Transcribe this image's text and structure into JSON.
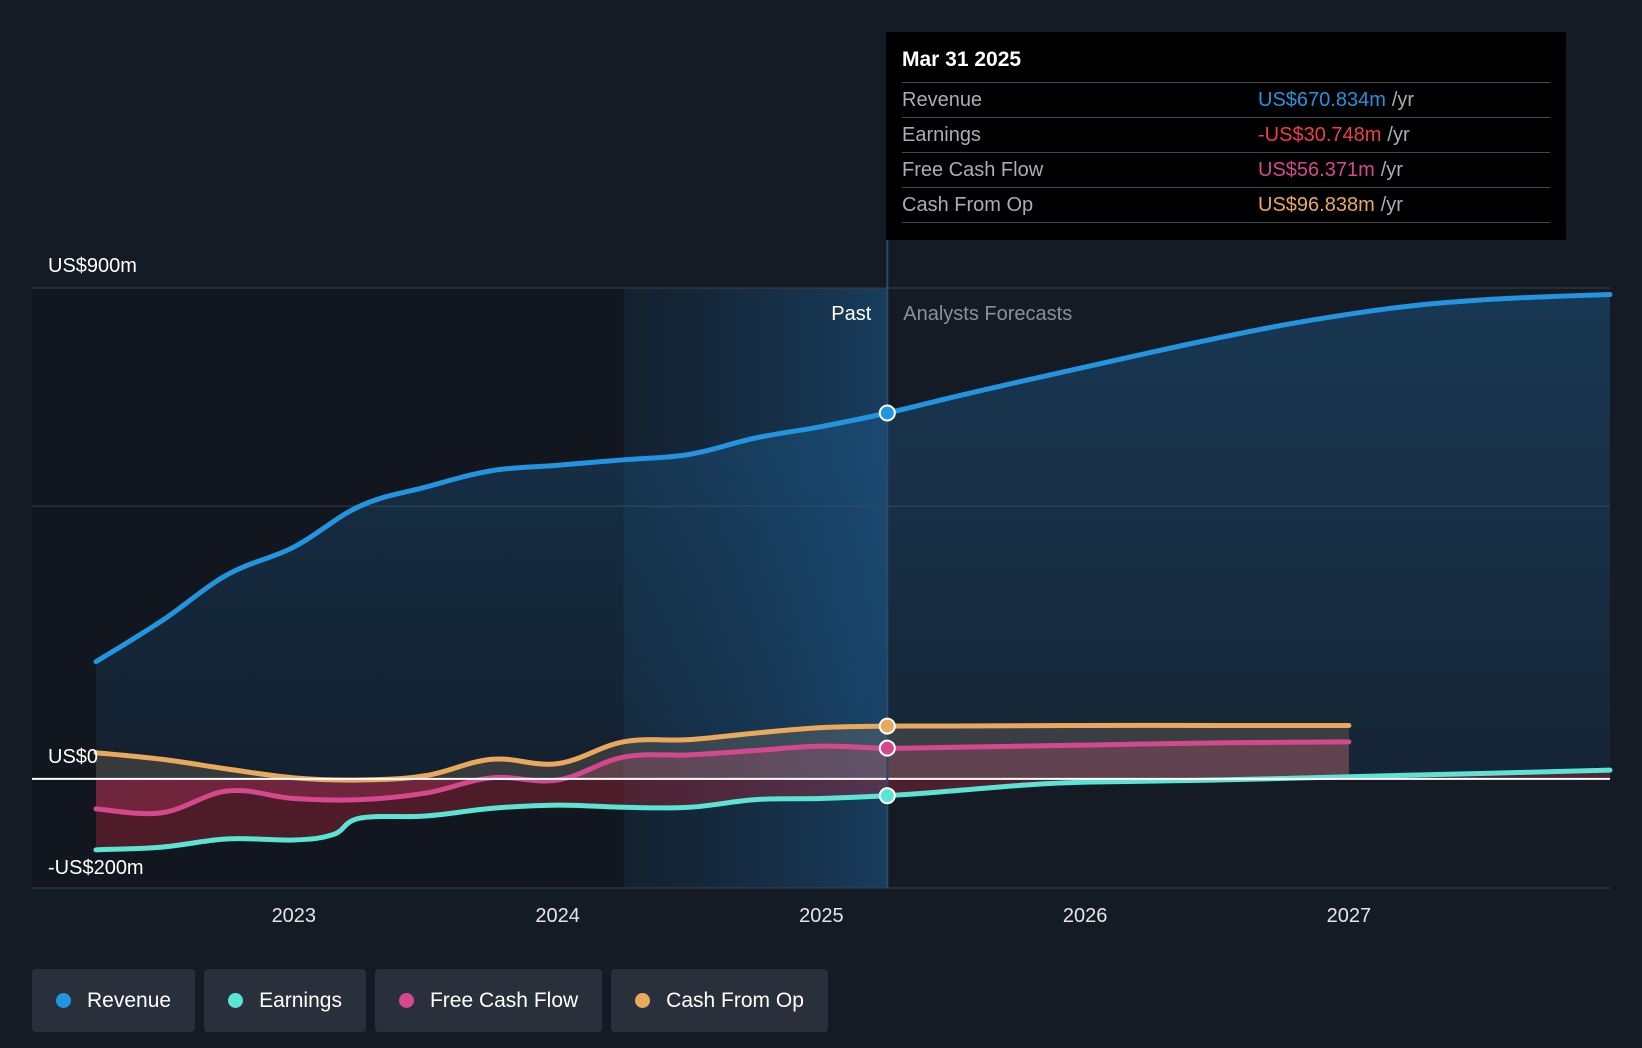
{
  "chart_data": {
    "type": "line",
    "x_unit": "year",
    "y_unit": "US$m",
    "yaxis_ticks": [
      {
        "value": 900,
        "label": "US$900m"
      },
      {
        "value": 0,
        "label": "US$0"
      },
      {
        "value": -200,
        "label": "-US$200m"
      }
    ],
    "ylim": [
      -200,
      900
    ],
    "xlim": [
      2022.25,
      2027.99
    ],
    "xaxis_ticks": [
      {
        "value": 2023,
        "label": "2023"
      },
      {
        "value": 2024,
        "label": "2024"
      },
      {
        "value": 2025,
        "label": "2025"
      },
      {
        "value": 2026,
        "label": "2026"
      },
      {
        "value": 2027,
        "label": "2027"
      }
    ],
    "past_label": "Past",
    "forecast_label": "Analysts Forecasts",
    "divider_x": 2025.25,
    "highlight_start_x": 2024.25,
    "gridlines_y": [
      900,
      500,
      -200
    ],
    "series": [
      {
        "name": "Revenue",
        "color": "#2394df",
        "fill": true,
        "points": [
          [
            2022.25,
            215
          ],
          [
            2022.5,
            290
          ],
          [
            2022.75,
            375
          ],
          [
            2023.0,
            425
          ],
          [
            2023.25,
            500
          ],
          [
            2023.5,
            535
          ],
          [
            2023.75,
            565
          ],
          [
            2024.0,
            575
          ],
          [
            2024.25,
            585
          ],
          [
            2024.5,
            595
          ],
          [
            2024.75,
            625
          ],
          [
            2025.0,
            646
          ],
          [
            2025.25,
            670.834
          ],
          [
            2025.5,
            700
          ],
          [
            2025.75,
            728
          ],
          [
            2026.0,
            755
          ],
          [
            2026.25,
            782
          ],
          [
            2026.5,
            808
          ],
          [
            2026.75,
            832
          ],
          [
            2027.0,
            852
          ],
          [
            2027.25,
            868
          ],
          [
            2027.5,
            878
          ],
          [
            2027.75,
            884
          ],
          [
            2027.99,
            888
          ]
        ]
      },
      {
        "name": "Earnings",
        "color": "#5be3d4",
        "fill": true,
        "points": [
          [
            2022.25,
            -130
          ],
          [
            2022.5,
            -125
          ],
          [
            2022.75,
            -110
          ],
          [
            2023.0,
            -112
          ],
          [
            2023.15,
            -102
          ],
          [
            2023.25,
            -72
          ],
          [
            2023.5,
            -68
          ],
          [
            2023.75,
            -54
          ],
          [
            2024.0,
            -48
          ],
          [
            2024.25,
            -52
          ],
          [
            2024.5,
            -52
          ],
          [
            2024.75,
            -38
          ],
          [
            2025.0,
            -36
          ],
          [
            2025.25,
            -30.748
          ],
          [
            2025.5,
            -22
          ],
          [
            2025.75,
            -12
          ],
          [
            2026.0,
            -6
          ],
          [
            2026.5,
            -2
          ],
          [
            2027.0,
            4
          ],
          [
            2027.5,
            10
          ],
          [
            2027.99,
            16
          ]
        ]
      },
      {
        "name": "Free Cash Flow",
        "color": "#d5488d",
        "fill": true,
        "points": [
          [
            2022.25,
            -55
          ],
          [
            2022.5,
            -62
          ],
          [
            2022.75,
            -22
          ],
          [
            2023.0,
            -36
          ],
          [
            2023.25,
            -38
          ],
          [
            2023.5,
            -26
          ],
          [
            2023.75,
            2
          ],
          [
            2024.0,
            -2
          ],
          [
            2024.25,
            40
          ],
          [
            2024.5,
            44
          ],
          [
            2024.75,
            52
          ],
          [
            2025.0,
            60
          ],
          [
            2025.25,
            56.371
          ],
          [
            2025.5,
            58
          ],
          [
            2026.0,
            62
          ],
          [
            2026.5,
            66
          ],
          [
            2027.0,
            68
          ]
        ]
      },
      {
        "name": "Cash From Op",
        "color": "#e9a95d",
        "fill": true,
        "points": [
          [
            2022.25,
            48
          ],
          [
            2022.5,
            36
          ],
          [
            2022.75,
            18
          ],
          [
            2023.0,
            2
          ],
          [
            2023.25,
            -2
          ],
          [
            2023.5,
            6
          ],
          [
            2023.75,
            36
          ],
          [
            2024.0,
            28
          ],
          [
            2024.25,
            68
          ],
          [
            2024.5,
            72
          ],
          [
            2024.75,
            84
          ],
          [
            2025.0,
            94
          ],
          [
            2025.25,
            96.838
          ],
          [
            2025.5,
            97
          ],
          [
            2026.0,
            98
          ],
          [
            2026.5,
            98
          ],
          [
            2027.0,
            98
          ]
        ]
      }
    ]
  },
  "tooltip": {
    "date": "Mar 31 2025",
    "rows": [
      {
        "name": "Revenue",
        "value": "US$670.834m",
        "unit": "/yr",
        "color": "#2394df"
      },
      {
        "name": "Earnings",
        "value": "-US$30.748m",
        "unit": "/yr",
        "color": "#ef3e4a"
      },
      {
        "name": "Free Cash Flow",
        "value": "US$56.371m",
        "unit": "/yr",
        "color": "#d5488d"
      },
      {
        "name": "Cash From Op",
        "value": "US$96.838m",
        "unit": "/yr",
        "color": "#e9a95d"
      }
    ]
  },
  "legend": [
    {
      "label": "Revenue",
      "color": "#2394df"
    },
    {
      "label": "Earnings",
      "color": "#5be3d4"
    },
    {
      "label": "Free Cash Flow",
      "color": "#d5488d"
    },
    {
      "label": "Cash From Op",
      "color": "#e9a95d"
    }
  ]
}
